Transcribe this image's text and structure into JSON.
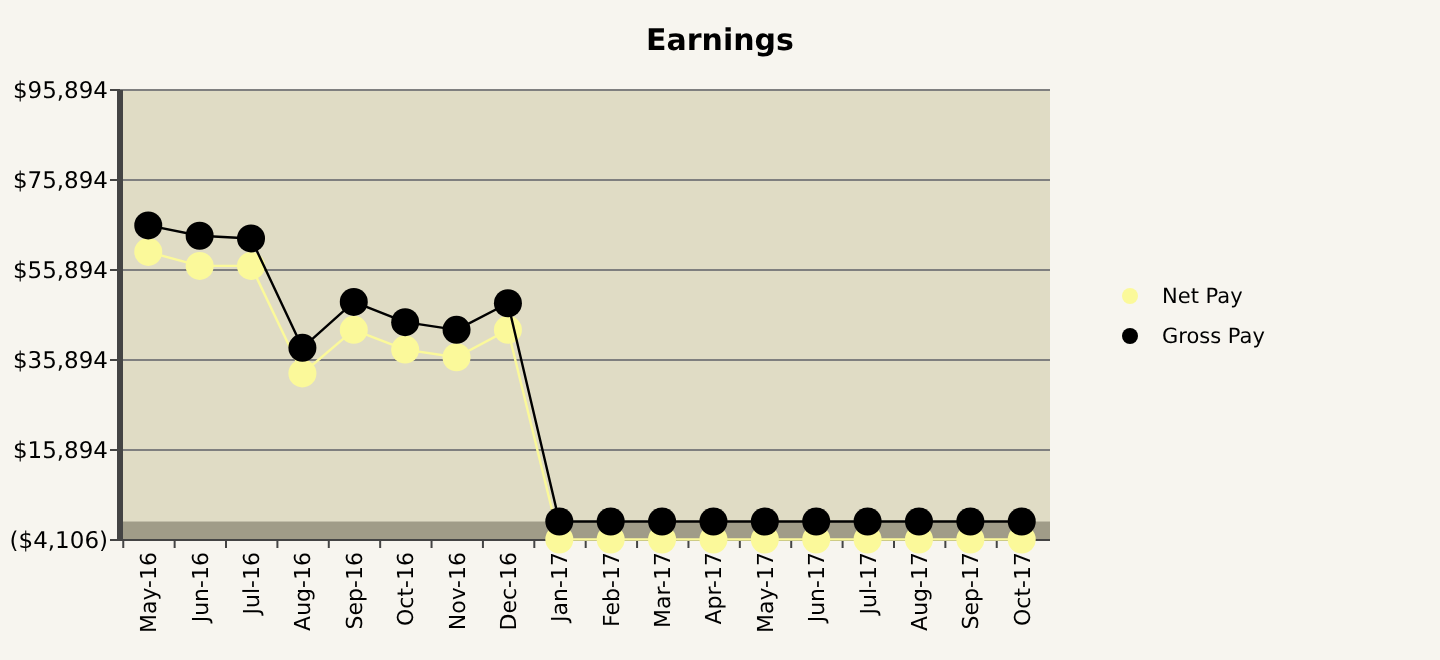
{
  "chart_data": {
    "type": "line",
    "title": "Earnings",
    "categories": [
      "May-16",
      "Jun-16",
      "Jul-16",
      "Aug-16",
      "Sep-16",
      "Oct-16",
      "Nov-16",
      "Dec-16",
      "Jan-17",
      "Feb-17",
      "Mar-17",
      "Apr-17",
      "May-17",
      "Jun-17",
      "Jul-17",
      "Aug-17",
      "Sep-17",
      "Oct-17"
    ],
    "series": [
      {
        "name": "Net Pay",
        "color": "#fbf99a",
        "values": [
          59900,
          56800,
          56800,
          32900,
          42600,
          38200,
          36500,
          42600,
          -4000,
          -4000,
          -4000,
          -4000,
          -4000,
          -4000,
          -4000,
          -4000,
          -4000,
          -4000
        ]
      },
      {
        "name": "Gross Pay",
        "color": "#000000",
        "values": [
          65800,
          63500,
          62900,
          38600,
          48800,
          44300,
          42600,
          48500,
          0,
          0,
          0,
          0,
          0,
          0,
          0,
          0,
          0,
          0
        ]
      }
    ],
    "ylim": [
      -4106,
      95894
    ],
    "yticks": [
      {
        "value": -4106,
        "label": "($4,106)"
      },
      {
        "value": 15894,
        "label": "$15,894"
      },
      {
        "value": 35894,
        "label": "$35,894"
      },
      {
        "value": 55894,
        "label": "$55,894"
      },
      {
        "value": 75894,
        "label": "$75,894"
      },
      {
        "value": 95894,
        "label": "$95,894"
      }
    ],
    "bands": [
      {
        "axis": "y",
        "from": -4106,
        "to": 0,
        "color": "#a09c88"
      }
    ],
    "grid": "y",
    "legend": "right",
    "marker": "circle",
    "line_style": "solid"
  }
}
